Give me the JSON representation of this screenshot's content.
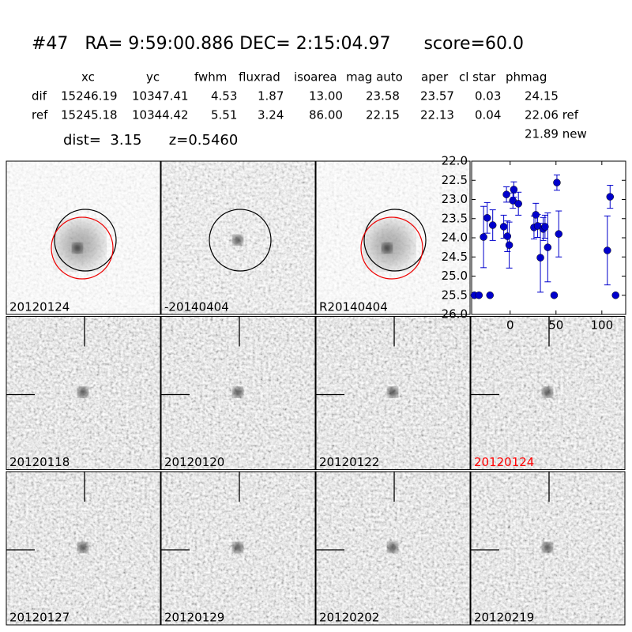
{
  "header": {
    "title": "#47   RA= 9:59:00.886 DEC= 2:15:04.97      score=60.0"
  },
  "table": {
    "columns": [
      "xc",
      "yc",
      "fwhm",
      "fluxrad",
      "isoarea",
      "mag auto",
      "aper",
      "cl star",
      "phmag"
    ],
    "rows": [
      [
        "dif",
        "15246.19",
        "10347.41",
        "4.53",
        "1.87",
        "13.00",
        "23.58",
        "23.57",
        "0.03",
        "24.15"
      ],
      [
        "ref",
        "15245.18",
        "10344.42",
        "5.51",
        "3.24",
        "86.00",
        "22.15",
        "22.13",
        "0.04",
        "22.06 ref"
      ]
    ],
    "extra": "21.89 new",
    "footer": "dist=  3.15      z=0.5460"
  },
  "panels": [
    {
      "label": "20120124"
    },
    {
      "label": "-20140404"
    },
    {
      "label": "R20140404"
    },
    {
      "label": "20120118"
    },
    {
      "label": "20120120"
    },
    {
      "label": "20120122"
    },
    {
      "label": "20120124",
      "label_color": "#ff0000"
    },
    {
      "label": "20120127"
    },
    {
      "label": "20120129"
    },
    {
      "label": "20120202"
    },
    {
      "label": "20120219"
    }
  ],
  "chart_data": {
    "type": "scatter",
    "color": "#0000cc",
    "x": [
      -39,
      -34,
      -29,
      -25,
      -22,
      -19,
      -7,
      -4,
      -3,
      -1,
      3,
      4,
      9,
      26,
      28,
      30,
      33,
      36,
      38,
      41,
      48,
      51,
      53,
      106,
      109,
      115
    ],
    "values": [
      25.5,
      25.5,
      23.98,
      23.48,
      25.5,
      23.67,
      23.71,
      22.87,
      23.96,
      24.19,
      23.03,
      22.74,
      23.11,
      23.73,
      23.4,
      23.69,
      24.52,
      23.77,
      23.71,
      24.25,
      25.5,
      22.56,
      23.9,
      24.33,
      22.93,
      25.5
    ],
    "errors": [
      null,
      null,
      0.8,
      0.4,
      null,
      0.4,
      0.3,
      0.2,
      0.4,
      0.6,
      0.2,
      0.2,
      0.3,
      0.3,
      0.3,
      0.3,
      0.9,
      0.3,
      0.3,
      0.9,
      null,
      0.2,
      0.6,
      0.9,
      0.3,
      null
    ],
    "xlim": [
      -42,
      126
    ],
    "ylim": [
      26,
      22
    ],
    "xticks": [
      0,
      50,
      100
    ],
    "yticks": [
      {
        "value": 22,
        "label": "22.0"
      },
      {
        "value": 22.5,
        "label": "22.5"
      },
      {
        "value": 23,
        "label": "23.0"
      },
      {
        "value": 23.5,
        "label": "23.5"
      },
      {
        "value": 24,
        "label": "24.0"
      },
      {
        "value": 24.5,
        "label": "24.5"
      },
      {
        "value": 25,
        "label": "25.0"
      },
      {
        "value": 25.5,
        "label": "25.5"
      },
      {
        "value": 26,
        "label": "26.0"
      }
    ]
  }
}
